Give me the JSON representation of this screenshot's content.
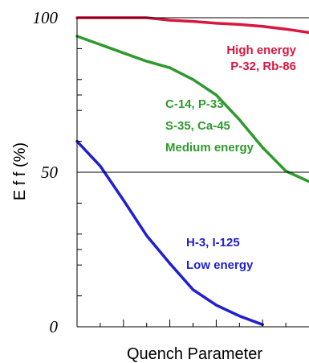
{
  "chart_data": {
    "type": "line",
    "xlabel": "Quench Parameter",
    "ylabel": "E f f  (%)",
    "ylim": [
      0,
      100
    ],
    "xlim": [
      0,
      10
    ],
    "grid": false,
    "x_ticks_labeled": false,
    "y_ticks": [
      {
        "value": 100,
        "label": "100"
      },
      {
        "value": 50,
        "label": "50"
      },
      {
        "value": 0,
        "label": "0"
      }
    ],
    "reference_line": 50,
    "series": [
      {
        "name": "High energy",
        "color": "#d8173f",
        "x": [
          0,
          1,
          2,
          3,
          4,
          5,
          6,
          7,
          8,
          9,
          10
        ],
        "y": [
          100,
          100,
          100,
          100,
          99.2,
          98.8,
          98.2,
          97.8,
          97.2,
          96.3,
          95.2
        ]
      },
      {
        "name": "Medium energy",
        "color": "#2e9a2e",
        "x": [
          0,
          1,
          2,
          3,
          4,
          5,
          6,
          7,
          8,
          9,
          10
        ],
        "y": [
          94,
          91.3,
          88.6,
          85.9,
          83.8,
          80,
          75,
          67,
          58,
          50.4,
          47
        ]
      },
      {
        "name": "Low energy",
        "color": "#1f1fcf",
        "x": [
          0,
          1,
          2,
          3,
          4,
          5,
          6,
          7,
          8,
          9,
          10
        ],
        "y": [
          60,
          52,
          41,
          29.5,
          20.5,
          12,
          7,
          3.5,
          0.7,
          null,
          null
        ]
      }
    ],
    "annotations": [
      {
        "lines": [
          "High energy",
          "P-32, Rb-86"
        ],
        "series": "High energy"
      },
      {
        "lines": [
          "C-14, P-33",
          "S-35, Ca-45",
          "Medium energy"
        ],
        "series": "Medium energy"
      },
      {
        "lines": [
          "H-3, I-125",
          "Low  energy"
        ],
        "series": "Low energy"
      }
    ]
  }
}
